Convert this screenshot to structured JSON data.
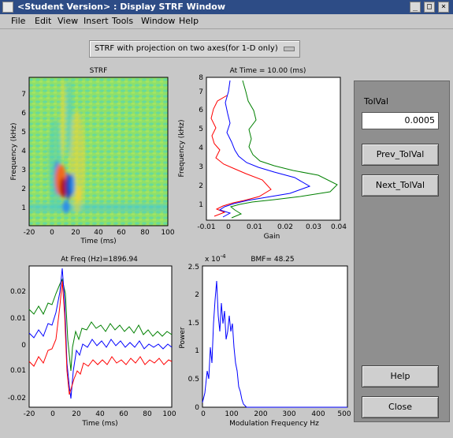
{
  "window": {
    "title": "<Student Version> : Display STRF Window",
    "buttons": {
      "minimize": "_",
      "maximize": "□",
      "close": "×"
    }
  },
  "menubar": [
    "File",
    "Edit",
    "View",
    "Insert",
    "Tools",
    "Window",
    "Help"
  ],
  "popup": {
    "selected": "STRF with projection on two axes(for 1-D only)"
  },
  "controls": {
    "tol_label": "TolVal",
    "tol_value": "0.0005",
    "prev_label": "Prev_TolVal",
    "next_label": "Next_TolVal",
    "help_label": "Help",
    "close_label": "Close"
  },
  "plots": {
    "strf": {
      "title": "STRF",
      "xlabel": "Time (ms)",
      "ylabel": "Frequency (kHz)",
      "xticks": [
        "-20",
        "0",
        "20",
        "40",
        "60",
        "80",
        "100"
      ],
      "yticks": [
        "1",
        "2",
        "3",
        "4",
        "5",
        "6",
        "7"
      ],
      "colormap": [
        "#1a3db8",
        "#2f8ee8",
        "#45d0c8",
        "#8fe06a",
        "#f0d43a",
        "#f06a1c",
        "#b01010"
      ]
    },
    "freq_proj": {
      "title": "At Time = 10.00 (ms)",
      "xlabel": "Gain",
      "ylabel": "Frequency (kHz)",
      "xticks": [
        "-0.01",
        "0",
        "0.01",
        "0.02",
        "0.03",
        "0.04"
      ],
      "yticks": [
        "1",
        "2",
        "3",
        "4",
        "5",
        "6",
        "7",
        "8"
      ]
    },
    "time_proj": {
      "title": "At Freq (Hz)=1896.94",
      "xlabel": "Time (ms)",
      "xticks": [
        "-20",
        "0",
        "20",
        "40",
        "60",
        "80",
        "100"
      ],
      "yticks": [
        "0.02",
        "0.01",
        "0",
        "0.01",
        "-0.02"
      ]
    },
    "bmf": {
      "title": "BMF= 48.25",
      "xlabel": "Modulation Frequency Hz",
      "ylabel": "Power",
      "exponent": "x 10",
      "exponent_power": "-4",
      "xticks": [
        "0",
        "100",
        "200",
        "300",
        "400",
        "500"
      ],
      "yticks": [
        "0",
        "0.5",
        "1",
        "1.5",
        "2",
        "2.5"
      ]
    }
  },
  "colors": {
    "blue": "#0000ff",
    "green": "#008000",
    "red": "#ff0000",
    "panel": "#8f8f8f",
    "titlebar": "#2d4c86"
  }
}
